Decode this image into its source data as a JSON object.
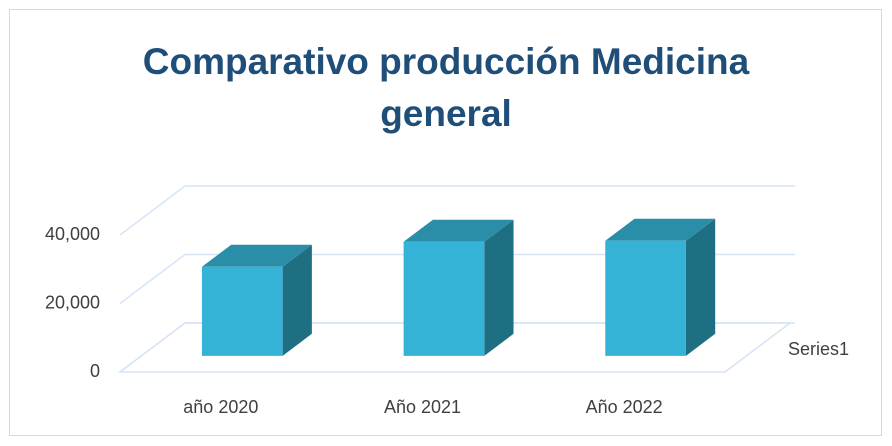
{
  "chart_data": {
    "type": "bar3d",
    "title": "Comparativo producción Medicina general",
    "categories": [
      "año 2020",
      "Año 2021",
      "Año 2022"
    ],
    "series": [
      {
        "name": "Series1",
        "color": "#35b3d6",
        "values": [
          26000,
          33300,
          33600
        ]
      }
    ],
    "ylim": [
      0,
      40000
    ],
    "yticks": [
      0,
      {
        "value": 20000,
        "label": "20,000"
      },
      {
        "value": 40000,
        "label": "40,000"
      }
    ],
    "grid": true
  }
}
